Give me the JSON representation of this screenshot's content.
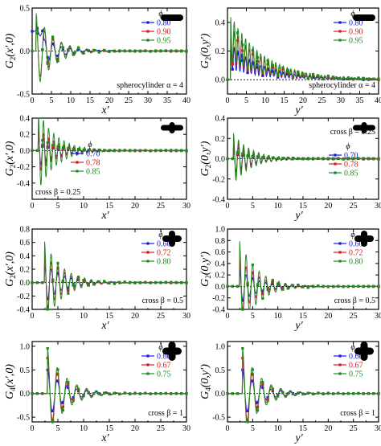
{
  "colors": {
    "blue": "#1a1ad6",
    "red": "#d41a1a",
    "green": "#1f8a1f",
    "frame": "#000000"
  },
  "chart_data": [
    {
      "id": "p1",
      "type": "line",
      "xlabel": "x′",
      "ylabel": "G",
      "ylabel_sub": "2",
      "ylabel_args": "(x′,0)",
      "xlim": [
        0,
        40
      ],
      "ylim": [
        -0.5,
        0.5
      ],
      "xticks": [
        "0",
        "5",
        "10",
        "15",
        "20",
        "25",
        "30",
        "35",
        "40"
      ],
      "yticks": [
        "-0.5",
        "0.0",
        "0.5"
      ],
      "ytick_values": [
        -0.5,
        0.0,
        0.5
      ],
      "note": "spherocylinder  α = 4",
      "legend_title": "ϕ",
      "legend_placement": "top-right",
      "particle": "spherocylinder",
      "series": [
        {
          "name": "0.80",
          "color": "#1a1ad6"
        },
        {
          "name": "0.90",
          "color": "#d41a1a"
        },
        {
          "name": "0.95",
          "color": "#1f8a1f"
        }
      ],
      "osc": {
        "x0": 1.0,
        "period": 2.2,
        "amp": [
          0.22,
          0.38,
          0.45
        ],
        "decay": 4.5,
        "offset": [
          0,
          0,
          0
        ],
        "neg": 1.0,
        "plateau": [
          0.23,
          0,
          0
        ],
        "smooth": false
      }
    },
    {
      "id": "p2",
      "type": "line",
      "xlabel": "y′",
      "ylabel": "G",
      "ylabel_sub": "2",
      "ylabel_args": "(0,y′)",
      "xlim": [
        0,
        40
      ],
      "ylim": [
        -0.1,
        0.5
      ],
      "xticks": [
        "0",
        "5",
        "10",
        "15",
        "20",
        "25",
        "30",
        "35",
        "40"
      ],
      "yticks": [
        "0.0",
        "0.2",
        "0.4"
      ],
      "ytick_values": [
        0.0,
        0.2,
        0.4
      ],
      "note": "spherocylinder  α = 4",
      "legend_title": "ϕ",
      "legend_placement": "top-right",
      "particle": "spherocylinder",
      "series": [
        {
          "name": "0.80",
          "color": "#1a1ad6"
        },
        {
          "name": "0.90",
          "color": "#d41a1a"
        },
        {
          "name": "0.95",
          "color": "#1f8a1f"
        }
      ],
      "osc": {
        "x0": 0.8,
        "period": 1.0,
        "amp": [
          0.25,
          0.38,
          0.45
        ],
        "decay": 9,
        "offset": [
          0,
          0,
          0
        ],
        "neg": 0.0,
        "plateau": [
          0,
          0,
          0
        ],
        "smooth": true
      }
    },
    {
      "id": "p3",
      "type": "line",
      "xlabel": "x′",
      "ylabel": "G",
      "ylabel_sub": "2",
      "ylabel_args": "(x′,0)",
      "xlim": [
        0,
        30
      ],
      "ylim": [
        -0.6,
        0.4
      ],
      "xticks": [
        "0",
        "5",
        "10",
        "15",
        "20",
        "25",
        "30"
      ],
      "yticks": [
        "-0.4",
        "-0.2",
        "0.0",
        "0.2",
        "0.4"
      ],
      "ytick_values": [
        -0.4,
        -0.2,
        0.0,
        0.2,
        0.4
      ],
      "note": "cross  β = 0.25",
      "legend_title": "ϕ",
      "legend_placement": "bottom-left",
      "particle": "cross-wide",
      "series": [
        {
          "name": "0.70",
          "color": "#1a1ad6"
        },
        {
          "name": "0.78",
          "color": "#d41a1a"
        },
        {
          "name": "0.85",
          "color": "#1f8a1f"
        }
      ],
      "osc": {
        "x0": 1.2,
        "period": 1.0,
        "amp": [
          0.2,
          0.28,
          0.5
        ],
        "decay": 3.5,
        "offset": [
          0,
          0,
          0
        ],
        "neg": 1.0,
        "plateau": [
          0,
          0,
          0
        ],
        "smooth": false
      }
    },
    {
      "id": "p4",
      "type": "line",
      "xlabel": "y′",
      "ylabel": "G",
      "ylabel_sub": "2",
      "ylabel_args": "(0,y′)",
      "xlim": [
        0,
        30
      ],
      "ylim": [
        -0.4,
        0.4
      ],
      "xticks": [
        "0",
        "5",
        "10",
        "15",
        "20",
        "25",
        "30"
      ],
      "yticks": [
        "-0.4",
        "-0.2",
        "0.0",
        "0.2",
        "0.4"
      ],
      "ytick_values": [
        -0.4,
        -0.2,
        0.0,
        0.2,
        0.4
      ],
      "note": "cross  β = 0.25",
      "legend_title": "ϕ",
      "legend_placement": "bottom-right",
      "particle": "cross-wide",
      "series": [
        {
          "name": "0.70",
          "color": "#1a1ad6"
        },
        {
          "name": "0.78",
          "color": "#d41a1a"
        },
        {
          "name": "0.85",
          "color": "#1f8a1f"
        }
      ],
      "osc": {
        "x0": 1.2,
        "period": 1.0,
        "amp": [
          0.15,
          0.2,
          0.25
        ],
        "decay": 3.5,
        "offset": [
          0,
          0,
          0
        ],
        "neg": 1.0,
        "plateau": [
          0,
          0,
          0
        ],
        "smooth": false
      }
    },
    {
      "id": "p5",
      "type": "line",
      "xlabel": "x′",
      "ylabel": "G",
      "ylabel_sub": "2",
      "ylabel_args": "(x′,0)",
      "xlim": [
        0,
        30
      ],
      "ylim": [
        -0.4,
        0.8
      ],
      "xticks": [
        "0",
        "5",
        "10",
        "15",
        "20",
        "25",
        "30"
      ],
      "yticks": [
        "-0.4",
        "-0.2",
        "0.0",
        "0.2",
        "0.4",
        "0.6",
        "0.8"
      ],
      "ytick_values": [
        -0.4,
        -0.2,
        0.0,
        0.2,
        0.4,
        0.6,
        0.8
      ],
      "note": "cross  β = 0.5",
      "legend_title": "ϕ",
      "legend_placement": "top-right",
      "particle": "cross-mid",
      "series": [
        {
          "name": "0.60",
          "color": "#1a1ad6"
        },
        {
          "name": "0.72",
          "color": "#d41a1a"
        },
        {
          "name": "0.80",
          "color": "#1f8a1f"
        }
      ],
      "osc": {
        "x0": 2.4,
        "period": 1.3,
        "amp": [
          0.3,
          0.45,
          0.62
        ],
        "decay": 3.5,
        "offset": [
          0,
          0,
          0
        ],
        "neg": 1.0,
        "plateau": [
          0,
          0,
          0
        ],
        "smooth": false
      }
    },
    {
      "id": "p6",
      "type": "line",
      "xlabel": "y′",
      "ylabel": "G",
      "ylabel_sub": "2",
      "ylabel_args": "(0,y′)",
      "xlim": [
        0,
        30
      ],
      "ylim": [
        -0.4,
        1.0
      ],
      "xticks": [
        "0",
        "5",
        "10",
        "15",
        "20",
        "25",
        "30"
      ],
      "yticks": [
        "-0.4",
        "-0.2",
        "0.0",
        "0.2",
        "0.4",
        "0.6",
        "0.8",
        "1.0"
      ],
      "ytick_values": [
        -0.4,
        -0.2,
        0.0,
        0.2,
        0.4,
        0.6,
        0.8,
        1.0
      ],
      "note": "cross  β = 0.5",
      "legend_title": "ϕ",
      "legend_placement": "top-right",
      "particle": "cross-mid",
      "series": [
        {
          "name": "0.60",
          "color": "#1a1ad6"
        },
        {
          "name": "0.72",
          "color": "#d41a1a"
        },
        {
          "name": "0.80",
          "color": "#1f8a1f"
        }
      ],
      "osc": {
        "x0": 2.4,
        "period": 1.3,
        "amp": [
          0.3,
          0.5,
          0.8
        ],
        "decay": 3.5,
        "offset": [
          0,
          0,
          0
        ],
        "neg": 1.0,
        "plateau": [
          0,
          0,
          0
        ],
        "smooth": false
      }
    },
    {
      "id": "p7",
      "type": "line",
      "xlabel": "x′",
      "ylabel": "G",
      "ylabel_sub": "4",
      "ylabel_args": "(x′,0)",
      "xlim": [
        0,
        30
      ],
      "ylim": [
        -0.6,
        1.1
      ],
      "xticks": [
        "0",
        "5",
        "10",
        "15",
        "20",
        "25",
        "30"
      ],
      "yticks": [
        "-0.5",
        "0.0",
        "0.5",
        "1.0"
      ],
      "ytick_values": [
        -0.5,
        0.0,
        0.5,
        1.0
      ],
      "note": "cross  β = 1",
      "legend_title": "ϕ",
      "legend_placement": "top-right",
      "particle": "cross-thick",
      "series": [
        {
          "name": "0.60",
          "color": "#1a1ad6"
        },
        {
          "name": "0.67",
          "color": "#d41a1a"
        },
        {
          "name": "0.75",
          "color": "#1f8a1f"
        }
      ],
      "osc": {
        "x0": 3.0,
        "period": 1.9,
        "amp": [
          0.5,
          0.75,
          0.95
        ],
        "decay": 3.5,
        "offset": [
          0,
          0,
          0
        ],
        "neg": 1.0,
        "plateau": [
          0,
          0,
          0
        ],
        "smooth": false
      }
    },
    {
      "id": "p8",
      "type": "line",
      "xlabel": "y′",
      "ylabel": "G",
      "ylabel_sub": "4",
      "ylabel_args": "(0,y′)",
      "xlim": [
        0,
        30
      ],
      "ylim": [
        -0.6,
        1.1
      ],
      "xticks": [
        "0",
        "5",
        "10",
        "15",
        "20",
        "25",
        "30"
      ],
      "yticks": [
        "-0.5",
        "0.0",
        "0.5",
        "1.0"
      ],
      "ytick_values": [
        -0.5,
        0.0,
        0.5,
        1.0
      ],
      "note": "cross  β = 1",
      "legend_title": "ϕ",
      "legend_placement": "top-right",
      "particle": "cross-thick",
      "series": [
        {
          "name": "0.60",
          "color": "#1a1ad6"
        },
        {
          "name": "0.67",
          "color": "#d41a1a"
        },
        {
          "name": "0.75",
          "color": "#1f8a1f"
        }
      ],
      "osc": {
        "x0": 3.0,
        "period": 1.9,
        "amp": [
          0.5,
          0.75,
          0.95
        ],
        "decay": 3.5,
        "offset": [
          0,
          0,
          0
        ],
        "neg": 1.0,
        "plateau": [
          0,
          0,
          0
        ],
        "smooth": false
      }
    }
  ]
}
